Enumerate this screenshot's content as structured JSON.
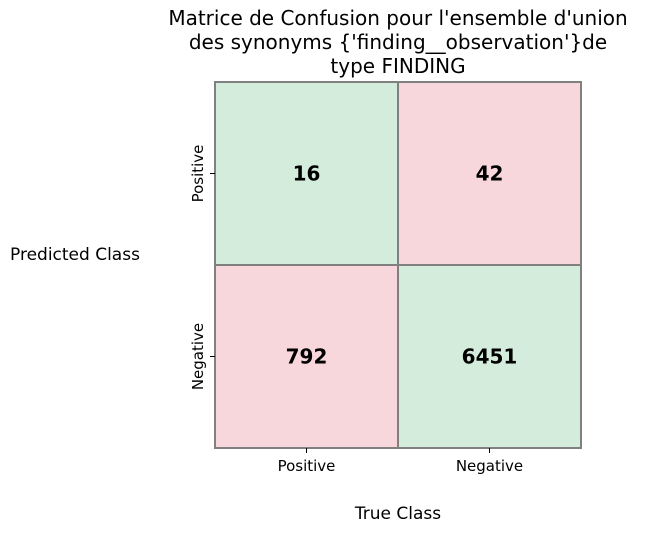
{
  "chart_data": {
    "type": "heatmap",
    "title_lines": [
      "Matrice de Confusion pour l'ensemble d'union",
      "des synonyms {'finding__observation'}de",
      "type  FINDING"
    ],
    "xlabel": "True Class",
    "ylabel": "Predicted Class",
    "x_categories": [
      "Positive",
      "Negative"
    ],
    "y_categories": [
      "Positive",
      "Negative"
    ],
    "values": [
      [
        16,
        42
      ],
      [
        792,
        6451
      ]
    ],
    "colors": {
      "correct": "#d4ecdb",
      "incorrect": "#f7d7db",
      "border": "#808080"
    }
  }
}
